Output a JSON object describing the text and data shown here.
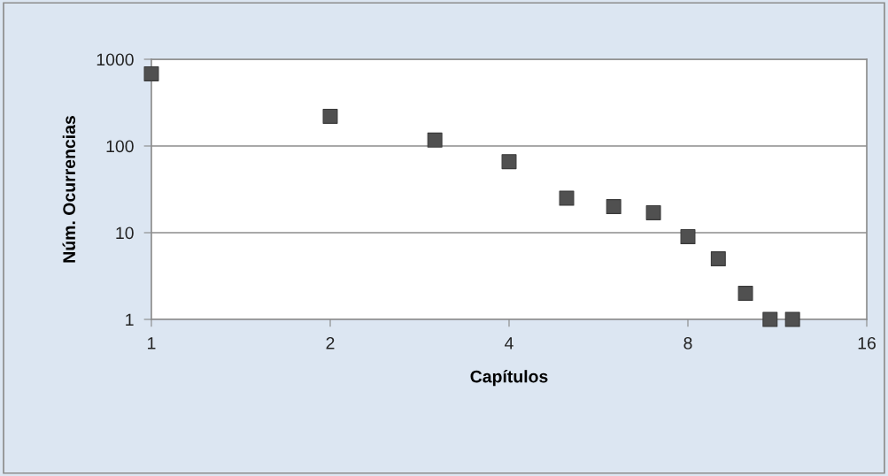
{
  "chart_data": {
    "type": "scatter",
    "xlabel": "Capítulos",
    "ylabel": "Núm. Ocurrencias",
    "x": [
      1,
      2,
      3,
      4,
      5,
      6,
      7,
      8,
      9,
      10,
      11,
      12
    ],
    "series": [
      {
        "color": "#505050",
        "values": [
          680,
          220,
          117,
          66,
          25,
          20,
          17,
          9,
          5,
          2,
          1,
          1
        ]
      }
    ],
    "log": "xy",
    "xlim": [
      1,
      16
    ],
    "xticks": [
      1,
      2,
      4,
      8,
      16
    ],
    "ylim": [
      1,
      1000
    ],
    "yticks": [
      1,
      10,
      100,
      1000
    ],
    "grid": "y",
    "marker": "square"
  }
}
